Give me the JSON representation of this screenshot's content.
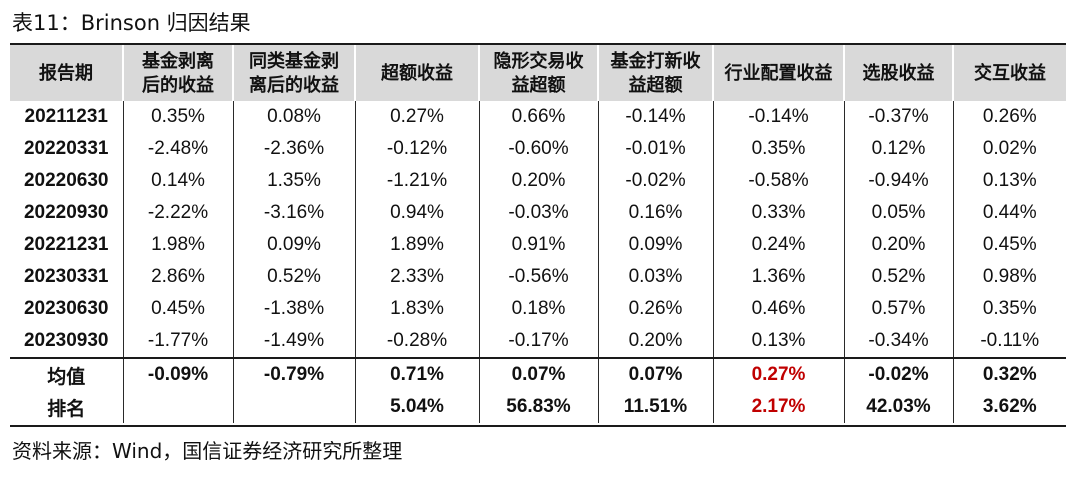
{
  "title": "表11：Brinson 归因结果",
  "columns": [
    [
      "报告期"
    ],
    [
      "基金剥离",
      "后的收益"
    ],
    [
      "同类基金剥",
      "离后的收益"
    ],
    [
      "超额收益"
    ],
    [
      "隐形交易收",
      "益超额"
    ],
    [
      "基金打新收",
      "益超额"
    ],
    [
      "行业配置收益"
    ],
    [
      "选股收益"
    ],
    [
      "交互收益"
    ]
  ],
  "rows": [
    [
      "20211231",
      "0.35%",
      "0.08%",
      "0.27%",
      "0.66%",
      "-0.14%",
      "-0.14%",
      "-0.37%",
      "0.26%"
    ],
    [
      "20220331",
      "-2.48%",
      "-2.36%",
      "-0.12%",
      "-0.60%",
      "-0.01%",
      "0.35%",
      "0.12%",
      "0.02%"
    ],
    [
      "20220630",
      "0.14%",
      "1.35%",
      "-1.21%",
      "0.20%",
      "-0.02%",
      "-0.58%",
      "-0.94%",
      "0.13%"
    ],
    [
      "20220930",
      "-2.22%",
      "-3.16%",
      "0.94%",
      "-0.03%",
      "0.16%",
      "0.33%",
      "0.05%",
      "0.44%"
    ],
    [
      "20221231",
      "1.98%",
      "0.09%",
      "1.89%",
      "0.91%",
      "0.09%",
      "0.24%",
      "0.20%",
      "0.45%"
    ],
    [
      "20230331",
      "2.86%",
      "0.52%",
      "2.33%",
      "-0.56%",
      "0.03%",
      "1.36%",
      "0.52%",
      "0.98%"
    ],
    [
      "20230630",
      "0.45%",
      "-1.38%",
      "1.83%",
      "0.18%",
      "0.26%",
      "0.46%",
      "0.57%",
      "0.35%"
    ],
    [
      "20230930",
      "-1.77%",
      "-1.49%",
      "-0.28%",
      "-0.17%",
      "0.20%",
      "0.13%",
      "-0.34%",
      "-0.11%"
    ]
  ],
  "summary": [
    [
      "均值",
      "-0.09%",
      "-0.79%",
      "0.71%",
      "0.07%",
      "0.07%",
      "0.27%",
      "-0.02%",
      "0.32%"
    ],
    [
      "排名",
      "",
      "",
      "5.04%",
      "56.83%",
      "11.51%",
      "2.17%",
      "42.03%",
      "3.62%"
    ]
  ],
  "highlight_color": "#c00000",
  "highlight_column_index": 6,
  "source": "资料来源：Wind，国信证券经济研究所整理"
}
